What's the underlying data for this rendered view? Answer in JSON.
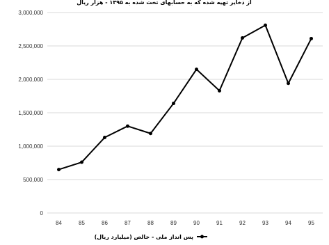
{
  "chart_data": {
    "type": "line",
    "title": "از ذخایر تهیه شده که به حسابهای تخت شده به ۱۳۹۵ - هزار ریال",
    "categories": [
      "84",
      "85",
      "86",
      "87",
      "88",
      "89",
      "90",
      "91",
      "92",
      "93",
      "94",
      "95"
    ],
    "series": [
      {
        "name": "پس انداز ملی - خالص (میلیارد ریال)",
        "values": [
          650000,
          760000,
          1130000,
          1300000,
          1190000,
          1640000,
          2150000,
          1830000,
          2620000,
          2810000,
          1940000,
          2610000
        ],
        "color": "#000000"
      }
    ],
    "ylim": [
      0,
      3000000
    ],
    "yticks": [
      "0",
      "500,000",
      "1,000,000",
      "1,500,000",
      "2,000,000",
      "2,500,000",
      "3,000,000"
    ],
    "ytick_values": [
      0,
      500000,
      1000000,
      1500000,
      2000000,
      2500000,
      3000000
    ],
    "grid": true,
    "legend_position": "bottom",
    "xlabel": "",
    "ylabel": ""
  }
}
